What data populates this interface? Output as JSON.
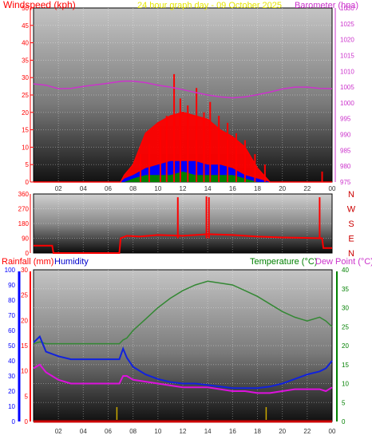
{
  "header": {
    "wind_label": "Windspeed (kph)",
    "graph_title": "24 hour graph day - 09 October 2025",
    "baro_label": "Barometer (hpa)"
  },
  "colors": {
    "frame": "#000000",
    "wind_gust": "#ff0000",
    "wind_avg": "#0000ff",
    "wind_low": "#008000",
    "barometer": "#cc33cc",
    "temperature": "#338833",
    "humidity": "#1122dd",
    "dewpoint": "#dd11dd",
    "rain": "#cc0000",
    "rain_marker": "#ccaa00",
    "left_axis_red": "#ff0000",
    "left_axis_blue": "#0000ff",
    "right_axis_green": "#008000",
    "right_axis_purple": "#cc33cc"
  },
  "chart_data": [
    {
      "type": "line",
      "id": "wind",
      "title": "24 hour graph day - 09 October 2025",
      "ylabel": "Windspeed (kph)",
      "y2label": "Barometer (hpa)",
      "ylim": [
        0,
        50
      ],
      "y2lim": [
        975,
        1030
      ],
      "x_ticks": [
        "02",
        "04",
        "06",
        "08",
        "10",
        "12",
        "14",
        "16",
        "18",
        "20",
        "22",
        "00"
      ],
      "y_ticks": [
        "0",
        "5",
        "10",
        "15",
        "20",
        "25",
        "30",
        "35",
        "40",
        "45",
        "50"
      ],
      "y2_ticks": [
        "975",
        "980",
        "985",
        "990",
        "995",
        "1000",
        "1005",
        "1010",
        "1015",
        "1020",
        "1025",
        "1030"
      ],
      "x_hours": [
        0,
        1,
        2,
        3,
        4,
        5,
        6,
        7,
        7.3,
        8,
        9,
        10,
        11,
        12,
        13,
        14,
        15,
        16,
        17,
        18,
        19,
        20,
        21,
        22,
        23,
        24
      ],
      "series": [
        {
          "name": "gust",
          "values": [
            0,
            0,
            0,
            0,
            0,
            0,
            0,
            0,
            2,
            5,
            14,
            17,
            19,
            20,
            19,
            18,
            15,
            13,
            10,
            4,
            0,
            0,
            0,
            0,
            0,
            0
          ]
        },
        {
          "name": "average",
          "values": [
            0,
            0,
            0,
            0,
            0,
            0,
            0,
            0,
            1,
            2,
            4,
            5,
            6,
            6,
            6,
            5,
            5,
            4,
            2,
            1,
            0,
            0,
            0,
            0,
            0,
            0
          ]
        },
        {
          "name": "low",
          "values": [
            0,
            0,
            0,
            0,
            0,
            0,
            0,
            0,
            0,
            1,
            2,
            2,
            2,
            3,
            2,
            2,
            2,
            2,
            1,
            0,
            0,
            0,
            0,
            0,
            0,
            0
          ]
        },
        {
          "name": "barometer",
          "axis": "right",
          "values": [
            1006.0,
            1005.6,
            1004.5,
            1004.6,
            1005.2,
            1005.7,
            1006.2,
            1006.8,
            1006.9,
            1006.9,
            1006.4,
            1005.6,
            1005.0,
            1004.2,
            1003.3,
            1002.5,
            1001.9,
            1001.6,
            1001.9,
            1002.6,
            1003.4,
            1004.4,
            1005.0,
            1005.0,
            1004.6,
            1004.5
          ]
        }
      ],
      "spikes": [
        [
          8.6,
          8
        ],
        [
          9.3,
          11
        ],
        [
          10.2,
          16
        ],
        [
          10.7,
          19
        ],
        [
          11.3,
          31
        ],
        [
          11.8,
          24
        ],
        [
          12.4,
          22
        ],
        [
          13.1,
          27
        ],
        [
          13.7,
          20
        ],
        [
          14.2,
          23
        ],
        [
          14.9,
          19
        ],
        [
          15.6,
          17
        ],
        [
          16.3,
          14
        ],
        [
          17.0,
          12
        ],
        [
          17.8,
          8
        ],
        [
          18.6,
          5
        ],
        [
          23.2,
          3
        ]
      ]
    },
    {
      "type": "line",
      "id": "direction",
      "ylabel": "",
      "y2_words": [
        "N",
        "W",
        "S",
        "E",
        "N"
      ],
      "ylim": [
        0,
        360
      ],
      "y_ticks": [
        "0",
        "90",
        "180",
        "270",
        "360"
      ],
      "x_hours": [
        0,
        1.5,
        1.6,
        6.9,
        7.0,
        7.5,
        8.5,
        10,
        12,
        14,
        16,
        18,
        20,
        22,
        23.2,
        23.3,
        24
      ],
      "values": [
        45,
        45,
        0,
        0,
        90,
        105,
        100,
        110,
        105,
        115,
        110,
        100,
        95,
        92,
        90,
        30,
        30
      ],
      "spikes": [
        [
          11.6,
          340
        ],
        [
          13.9,
          345
        ],
        [
          14.1,
          340
        ],
        [
          23.0,
          340
        ]
      ]
    },
    {
      "type": "line",
      "id": "temp_hum",
      "ylabel": "Rainfall (mm)",
      "ylabel2": "Humidity",
      "y2label": "Temperature (°C)",
      "y3label": "Dew Point (°C)",
      "ylim_humidity": [
        0,
        100
      ],
      "ylim_rain": [
        0,
        30
      ],
      "y2lim": [
        0,
        40
      ],
      "x_ticks": [
        "02",
        "04",
        "06",
        "08",
        "10",
        "12",
        "14",
        "16",
        "18",
        "20",
        "22",
        "00"
      ],
      "humidity_ticks": [
        "0",
        "10",
        "20",
        "30",
        "40",
        "50",
        "60",
        "70",
        "80",
        "90",
        "100"
      ],
      "rain_ticks": [
        "0",
        "5",
        "10",
        "15",
        "20",
        "25",
        "30"
      ],
      "temp_ticks": [
        "0",
        "5",
        "10",
        "15",
        "20",
        "25",
        "30",
        "35",
        "40"
      ],
      "x_hours": [
        0,
        0.5,
        1,
        2,
        3,
        4,
        5,
        6,
        6.9,
        7.2,
        7.5,
        8,
        9,
        10,
        11,
        12,
        13,
        14,
        15,
        16,
        17,
        18,
        19,
        20,
        21,
        22,
        23,
        23.5,
        24
      ],
      "series": [
        {
          "name": "temperature",
          "axis": "right",
          "values": [
            20.5,
            21,
            20.5,
            20.5,
            20.5,
            20.5,
            20.5,
            20.5,
            20.5,
            21.5,
            22,
            24,
            27,
            30,
            32.5,
            34.5,
            36,
            37,
            36.5,
            36,
            34.5,
            33,
            31,
            29,
            27.5,
            26.5,
            27.5,
            26.5,
            25
          ]
        },
        {
          "name": "humidity",
          "axis": "humidity",
          "values": [
            52,
            56,
            46,
            43,
            41,
            41,
            41,
            41,
            41,
            48,
            42,
            36,
            31,
            28,
            26,
            25,
            25,
            24,
            23,
            22,
            22,
            22,
            23,
            25,
            28,
            31,
            33,
            35,
            40
          ]
        },
        {
          "name": "dewpoint",
          "axis": "right",
          "values": [
            14,
            15,
            13,
            11,
            10,
            10,
            10,
            10,
            10,
            12,
            12,
            11,
            10.5,
            10,
            9.5,
            9,
            9,
            9,
            8.5,
            8,
            8,
            7.5,
            7.5,
            8,
            8.5,
            8.5,
            8.5,
            8,
            9
          ]
        },
        {
          "name": "rainfall",
          "axis": "rain",
          "values": [
            0,
            0,
            0,
            0,
            0,
            0,
            0,
            0,
            0,
            0,
            0,
            0,
            0,
            0,
            0,
            0,
            0,
            0,
            0,
            0,
            0,
            0,
            0,
            0,
            0,
            0,
            0,
            0,
            0
          ]
        }
      ],
      "markers": [
        6.7,
        18.7
      ]
    }
  ]
}
